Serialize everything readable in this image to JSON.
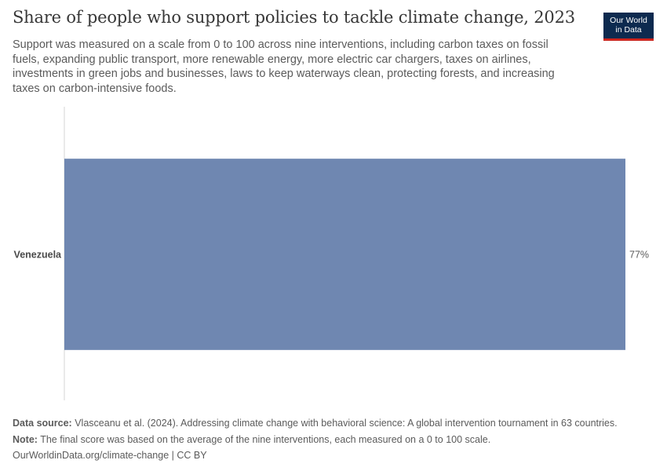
{
  "header": {
    "title": "Share of people who support policies to tackle climate change, 2023",
    "subtitle": "Support was measured on a scale from 0 to 100 across nine interventions, including carbon taxes on fossil fuels, expanding public transport, more renewable energy, more electric car chargers, taxes on airlines, investments in green jobs and businesses, laws to keep waterways clean, protecting forests, and increasing taxes on carbon-intensive foods."
  },
  "logo": {
    "line1": "Our World",
    "line2": "in Data"
  },
  "chart_data": {
    "type": "bar",
    "orientation": "horizontal",
    "categories": [
      "Venezuela"
    ],
    "values": [
      77
    ],
    "value_labels": [
      "77%"
    ],
    "unit": "%",
    "xlim": [
      0,
      77
    ],
    "bar_color": "#6f87b1",
    "grid": false
  },
  "footer": {
    "source_label": "Data source:",
    "source_text": "Vlasceanu et al. (2024). Addressing climate change with behavioral science: A global intervention tournament in 63 countries.",
    "note_label": "Note:",
    "note_text": "The final score was based on the average of the nine interventions, each measured on a 0 to 100 scale.",
    "url": "OurWorldinData.org/climate-change | CC BY"
  }
}
